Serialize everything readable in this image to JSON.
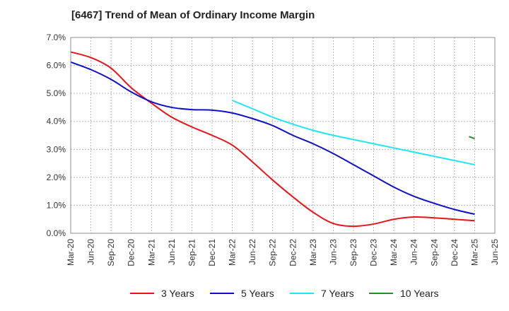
{
  "chart_data": {
    "type": "line",
    "title": "[6467]  Trend of Mean of Ordinary Income Margin",
    "xlabel": "",
    "ylabel": "",
    "x": [
      "Mar-20",
      "Jun-20",
      "Sep-20",
      "Dec-20",
      "Mar-21",
      "Jun-21",
      "Sep-21",
      "Dec-21",
      "Mar-22",
      "Jun-22",
      "Sep-22",
      "Dec-22",
      "Mar-23",
      "Jun-23",
      "Sep-23",
      "Dec-23",
      "Mar-24",
      "Jun-24",
      "Sep-24",
      "Dec-24",
      "Mar-25",
      "Jun-25"
    ],
    "ylim": [
      0,
      7
    ],
    "yticks": [
      "0.0%",
      "1.0%",
      "2.0%",
      "3.0%",
      "4.0%",
      "5.0%",
      "6.0%",
      "7.0%"
    ],
    "grid": true,
    "legend_position": "bottom",
    "series": [
      {
        "name": "3 Years",
        "color": "#e8141a",
        "values": [
          6.48,
          6.28,
          5.9,
          5.2,
          4.65,
          4.15,
          3.8,
          3.5,
          3.15,
          2.55,
          1.9,
          1.3,
          0.75,
          0.35,
          0.25,
          0.33,
          0.5,
          0.58,
          0.55,
          0.5,
          0.45,
          null
        ]
      },
      {
        "name": "5 Years",
        "color": "#1010c8",
        "values": [
          6.12,
          5.85,
          5.5,
          5.05,
          4.7,
          4.5,
          4.42,
          4.4,
          4.3,
          4.1,
          3.85,
          3.5,
          3.2,
          2.85,
          2.45,
          2.05,
          1.65,
          1.32,
          1.07,
          0.85,
          0.68,
          null
        ]
      },
      {
        "name": "7 Years",
        "color": "#22e6ee",
        "values": [
          null,
          null,
          null,
          null,
          null,
          null,
          null,
          null,
          4.75,
          4.45,
          4.15,
          3.9,
          3.68,
          3.5,
          3.35,
          3.2,
          3.05,
          2.9,
          2.75,
          2.6,
          2.45,
          null
        ]
      },
      {
        "name": "10 Years",
        "color": "#2a8a2a",
        "values": [
          null,
          null,
          null,
          null,
          null,
          null,
          null,
          null,
          null,
          null,
          null,
          null,
          null,
          null,
          null,
          null,
          null,
          null,
          null,
          null,
          3.42,
          null
        ]
      }
    ]
  }
}
